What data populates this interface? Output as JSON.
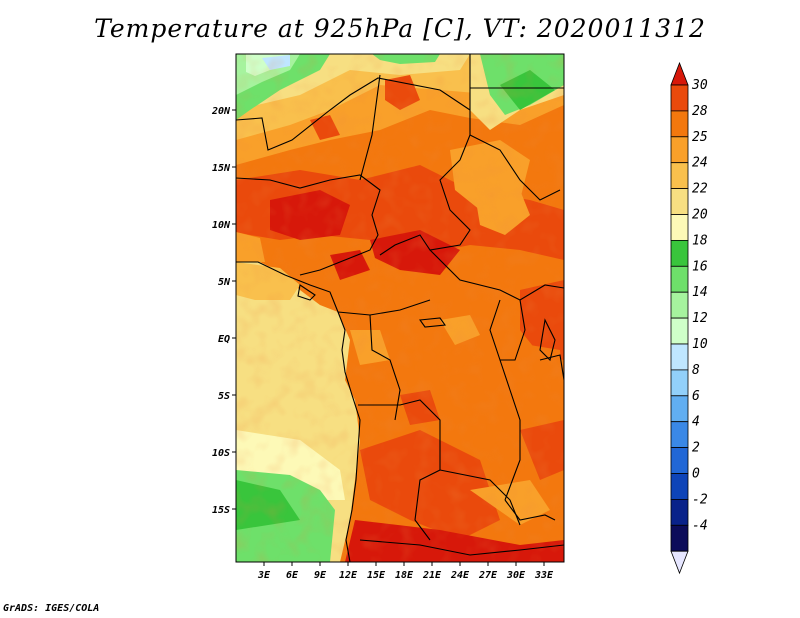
{
  "title": "Temperature at 925hPa [C], VT: 2020011312",
  "credit": "GrADS: IGES/COLA",
  "lat_labels": [
    "20N",
    "15N",
    "10N",
    "5N",
    "EQ",
    "5S",
    "10S",
    "15S"
  ],
  "lon_labels": [
    "3E",
    "6E",
    "9E",
    "12E",
    "15E",
    "18E",
    "21E",
    "24E",
    "27E",
    "30E",
    "33E"
  ],
  "colorbar": {
    "labels": [
      "30",
      "28",
      "25",
      "24",
      "22",
      "20",
      "18",
      "16",
      "14",
      "12",
      "10",
      "8",
      "6",
      "4",
      "2",
      "0",
      "-2",
      "-4"
    ],
    "colors": [
      "#d7180a",
      "#ea4a0c",
      "#f3780e",
      "#f9a02a",
      "#f9c04d",
      "#f7df82",
      "#fdf9b7",
      "#39c53c",
      "#6ee06a",
      "#a6f39e",
      "#cfffc9",
      "#bfe6ff",
      "#92d0fa",
      "#61aef1",
      "#3a88e6",
      "#2167d6",
      "#0e44b8",
      "#09228a",
      "#0c0c5a"
    ],
    "low_end_color": "#e6e6ff",
    "high_end_color": "#d7180a"
  }
}
